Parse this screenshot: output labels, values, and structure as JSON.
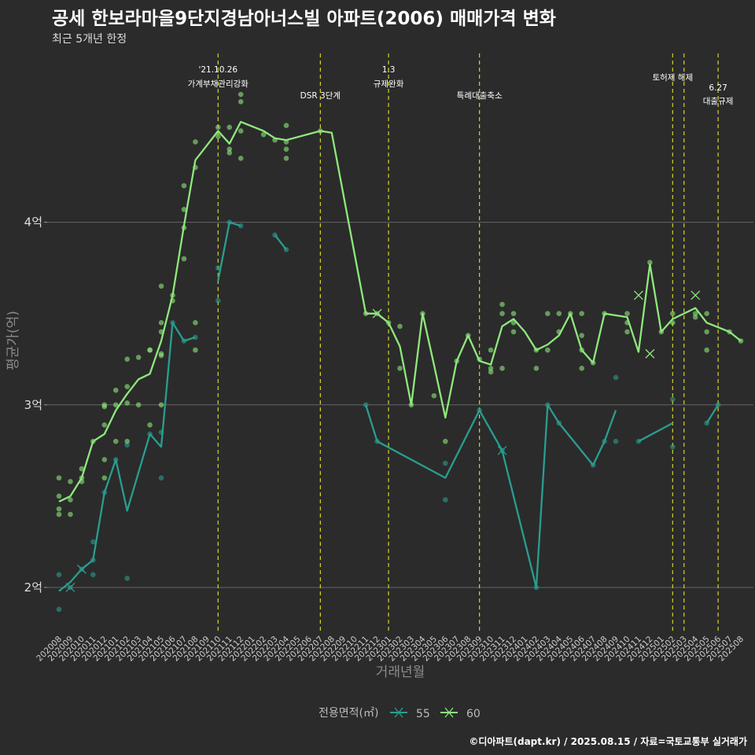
{
  "header": {
    "title": "공세 한보라마을9단지경남아너스빌 아파트(2006) 매매가격 변화",
    "subtitle": "최근 5개년 한정"
  },
  "caption": "©디아파트(dapt.kr) / 2025.08.15 / 자료=국토교통부 실거래가",
  "colors": {
    "s55": "#2a9d8f",
    "s60": "#8ee87c",
    "event": "#d4d42a",
    "grid": "#666666",
    "bg": "#2b2b2b"
  },
  "chart_data": {
    "type": "line",
    "xlabel": "거래년월",
    "ylabel": "평균가(억)",
    "ylim": [
      1.75,
      4.95
    ],
    "yticks": [
      {
        "v": 2,
        "label": "2억"
      },
      {
        "v": 3,
        "label": "3억"
      },
      {
        "v": 4,
        "label": "4억"
      }
    ],
    "x": [
      "202008",
      "202009",
      "202010",
      "202011",
      "202012",
      "202101",
      "202102",
      "202103",
      "202104",
      "202105",
      "202106",
      "202107",
      "202108",
      "202109",
      "202110",
      "202111",
      "202112",
      "202201",
      "202202",
      "202203",
      "202204",
      "202205",
      "202206",
      "202207",
      "202208",
      "202209",
      "202210",
      "202211",
      "202212",
      "202301",
      "202302",
      "202303",
      "202304",
      "202305",
      "202306",
      "202307",
      "202308",
      "202309",
      "202310",
      "202311",
      "202312",
      "202401",
      "202402",
      "202403",
      "202404",
      "202405",
      "202406",
      "202407",
      "202408",
      "202409",
      "202410",
      "202411",
      "202412",
      "202501",
      "202502",
      "202503",
      "202504",
      "202505",
      "202506",
      "202507",
      "202508"
    ],
    "legend": {
      "title": "전용면적(㎡)",
      "position": "bottom"
    },
    "events": [
      {
        "x": "202110",
        "line1": "'21.10.26",
        "line2": "가계부채관리강화",
        "row": 0
      },
      {
        "x": "202207",
        "line1": "",
        "line2": "DSR 3단계",
        "row": 1
      },
      {
        "x": "202301",
        "line1": "1.3",
        "line2": "규제완화",
        "row": 0
      },
      {
        "x": "202309",
        "line1": "",
        "line2": "특례대출축소",
        "row": 1
      },
      {
        "x": "202502",
        "line1": "토허제 해제",
        "line2": "",
        "row": 0
      },
      {
        "x": "202503",
        "line1": "",
        "line2": "",
        "row": 0
      },
      {
        "x": "202506",
        "line1": "6.27",
        "line2": "대출규제",
        "row": 2
      }
    ],
    "series": [
      {
        "name": "55",
        "line": [
          [
            [
              0,
              1.98
            ],
            [
              1,
              2.03
            ],
            [
              2,
              2.1
            ],
            [
              3,
              2.15
            ],
            [
              4,
              2.52
            ],
            [
              5,
              2.7
            ],
            [
              6,
              2.42
            ],
            [
              8,
              2.84
            ],
            [
              9,
              2.77
            ],
            [
              10,
              3.45
            ],
            [
              11,
              3.35
            ],
            [
              12,
              3.37
            ]
          ],
          [
            [
              14,
              3.68
            ],
            [
              15,
              4.0
            ],
            [
              16,
              3.98
            ]
          ],
          [
            [
              19,
              3.93
            ],
            [
              20,
              3.85
            ]
          ],
          [
            [
              27,
              3.0
            ],
            [
              28,
              2.8
            ],
            [
              34,
              2.6
            ],
            [
              37,
              2.97
            ],
            [
              39,
              2.75
            ],
            [
              42,
              2.0
            ],
            [
              43,
              3.0
            ],
            [
              44,
              2.9
            ],
            [
              47,
              2.67
            ],
            [
              48,
              2.8
            ],
            [
              49,
              2.97
            ]
          ],
          [
            [
              51,
              2.8
            ],
            [
              54,
              2.9
            ]
          ],
          [
            [
              57,
              2.9
            ],
            [
              58,
              3.0
            ]
          ]
        ],
        "points": [
          [
            0,
            2.07
          ],
          [
            0,
            1.88
          ],
          [
            1,
            2.0
          ],
          [
            2,
            2.1
          ],
          [
            3,
            2.25
          ],
          [
            3,
            2.07
          ],
          [
            3,
            2.15
          ],
          [
            4,
            2.52
          ],
          [
            5,
            2.7
          ],
          [
            6,
            2.05
          ],
          [
            6,
            2.78
          ],
          [
            8,
            2.84
          ],
          [
            9,
            2.85
          ],
          [
            9,
            2.6
          ],
          [
            10,
            3.45
          ],
          [
            11,
            3.35
          ],
          [
            12,
            3.37
          ],
          [
            14,
            3.75
          ],
          [
            14,
            3.57
          ],
          [
            15,
            4.0
          ],
          [
            16,
            3.98
          ],
          [
            19,
            3.93
          ],
          [
            20,
            3.85
          ],
          [
            27,
            3.0
          ],
          [
            28,
            2.8
          ],
          [
            34,
            2.68
          ],
          [
            34,
            2.48
          ],
          [
            37,
            2.97
          ],
          [
            39,
            2.75
          ],
          [
            42,
            2.0
          ],
          [
            43,
            3.0
          ],
          [
            44,
            2.9
          ],
          [
            47,
            2.67
          ],
          [
            48,
            2.8
          ],
          [
            49,
            2.8
          ],
          [
            49,
            3.15
          ],
          [
            51,
            2.8
          ],
          [
            54,
            2.77
          ],
          [
            54,
            3.03
          ],
          [
            57,
            2.9
          ],
          [
            58,
            3.0
          ]
        ],
        "crosses": [
          [
            1,
            2.0
          ],
          [
            2,
            2.1
          ],
          [
            39,
            2.75
          ]
        ]
      },
      {
        "name": "60",
        "line": [
          [
            [
              0,
              2.47
            ],
            [
              1,
              2.5
            ],
            [
              2,
              2.6
            ],
            [
              3,
              2.8
            ],
            [
              4,
              2.84
            ],
            [
              5,
              2.97
            ],
            [
              6,
              3.06
            ],
            [
              7,
              3.14
            ],
            [
              8,
              3.17
            ],
            [
              9,
              3.35
            ],
            [
              10,
              3.6
            ],
            [
              11,
              3.98
            ],
            [
              12,
              4.34
            ],
            [
              13,
              4.42
            ],
            [
              14,
              4.5
            ],
            [
              15,
              4.43
            ],
            [
              16,
              4.55
            ],
            [
              18,
              4.5
            ],
            [
              19,
              4.46
            ],
            [
              20,
              4.45
            ],
            [
              23,
              4.5
            ],
            [
              24,
              4.49
            ],
            [
              27,
              3.5
            ],
            [
              28,
              3.5
            ],
            [
              29,
              3.45
            ],
            [
              30,
              3.32
            ],
            [
              31,
              3.0
            ],
            [
              32,
              3.5
            ],
            [
              33,
              3.22
            ],
            [
              34,
              2.93
            ],
            [
              35,
              3.24
            ],
            [
              36,
              3.38
            ],
            [
              37,
              3.24
            ],
            [
              38,
              3.22
            ],
            [
              39,
              3.43
            ],
            [
              40,
              3.47
            ],
            [
              41,
              3.4
            ],
            [
              42,
              3.3
            ],
            [
              43,
              3.33
            ],
            [
              44,
              3.38
            ],
            [
              45,
              3.5
            ],
            [
              46,
              3.3
            ],
            [
              47,
              3.23
            ],
            [
              48,
              3.5
            ],
            [
              50,
              3.48
            ],
            [
              51,
              3.29
            ],
            [
              52,
              3.77
            ],
            [
              53,
              3.4
            ],
            [
              54,
              3.47
            ],
            [
              56,
              3.53
            ],
            [
              57,
              3.45
            ],
            [
              59,
              3.4
            ],
            [
              60,
              3.35
            ]
          ]
        ],
        "points": [
          [
            0,
            2.6
          ],
          [
            0,
            2.5
          ],
          [
            0,
            2.43
          ],
          [
            0,
            2.4
          ],
          [
            1,
            2.58
          ],
          [
            1,
            2.48
          ],
          [
            1,
            2.4
          ],
          [
            2,
            2.65
          ],
          [
            2,
            2.6
          ],
          [
            2,
            2.58
          ],
          [
            3,
            2.8
          ],
          [
            4,
            2.7
          ],
          [
            4,
            2.6
          ],
          [
            4,
            2.89
          ],
          [
            4,
            3.0
          ],
          [
            4,
            2.99
          ],
          [
            5,
            3.08
          ],
          [
            5,
            3.0
          ],
          [
            5,
            2.8
          ],
          [
            6,
            3.25
          ],
          [
            6,
            3.1
          ],
          [
            6,
            3.01
          ],
          [
            6,
            2.8
          ],
          [
            7,
            3.26
          ],
          [
            7,
            3.0
          ],
          [
            8,
            3.3
          ],
          [
            8,
            3.3
          ],
          [
            8,
            2.89
          ],
          [
            9,
            3.65
          ],
          [
            9,
            3.45
          ],
          [
            9,
            3.4
          ],
          [
            9,
            3.28
          ],
          [
            9,
            3.27
          ],
          [
            9,
            3.0
          ],
          [
            10,
            3.6
          ],
          [
            10,
            3.57
          ],
          [
            11,
            4.2
          ],
          [
            11,
            4.07
          ],
          [
            11,
            3.97
          ],
          [
            11,
            3.8
          ],
          [
            12,
            4.44
          ],
          [
            12,
            4.3
          ],
          [
            12,
            3.45
          ],
          [
            12,
            3.3
          ],
          [
            14,
            4.52
          ],
          [
            14,
            4.47
          ],
          [
            15,
            4.38
          ],
          [
            15,
            4.4
          ],
          [
            15,
            4.52
          ],
          [
            16,
            4.7
          ],
          [
            16,
            4.66
          ],
          [
            16,
            4.5
          ],
          [
            16,
            4.35
          ],
          [
            18,
            4.48
          ],
          [
            19,
            4.45
          ],
          [
            20,
            4.53
          ],
          [
            20,
            4.44
          ],
          [
            20,
            4.4
          ],
          [
            20,
            4.35
          ],
          [
            23,
            4.5
          ],
          [
            27,
            3.5
          ],
          [
            28,
            3.5
          ],
          [
            29,
            3.45
          ],
          [
            30,
            3.43
          ],
          [
            30,
            3.2
          ],
          [
            31,
            3.0
          ],
          [
            32,
            3.5
          ],
          [
            33,
            3.05
          ],
          [
            34,
            2.8
          ],
          [
            35,
            3.24
          ],
          [
            36,
            3.38
          ],
          [
            37,
            3.25
          ],
          [
            38,
            3.3
          ],
          [
            38,
            3.2
          ],
          [
            38,
            3.18
          ],
          [
            39,
            3.55
          ],
          [
            39,
            3.5
          ],
          [
            39,
            3.2
          ],
          [
            40,
            3.5
          ],
          [
            40,
            3.45
          ],
          [
            40,
            3.4
          ],
          [
            42,
            3.3
          ],
          [
            42,
            3.2
          ],
          [
            43,
            3.5
          ],
          [
            43,
            3.3
          ],
          [
            44,
            3.5
          ],
          [
            44,
            3.4
          ],
          [
            45,
            3.5
          ],
          [
            46,
            3.5
          ],
          [
            46,
            3.38
          ],
          [
            46,
            3.3
          ],
          [
            46,
            3.2
          ],
          [
            47,
            3.23
          ],
          [
            48,
            3.5
          ],
          [
            50,
            3.5
          ],
          [
            50,
            3.45
          ],
          [
            50,
            3.4
          ],
          [
            52,
            3.78
          ],
          [
            53,
            3.4
          ],
          [
            54,
            3.5
          ],
          [
            54,
            3.45
          ],
          [
            56,
            3.5
          ],
          [
            56,
            3.48
          ],
          [
            57,
            3.5
          ],
          [
            57,
            3.4
          ],
          [
            57,
            3.3
          ],
          [
            59,
            3.4
          ],
          [
            60,
            3.35
          ]
        ],
        "crosses": [
          [
            28,
            3.5
          ],
          [
            51,
            3.6
          ],
          [
            52,
            3.28
          ],
          [
            56,
            3.6
          ]
        ]
      }
    ]
  }
}
